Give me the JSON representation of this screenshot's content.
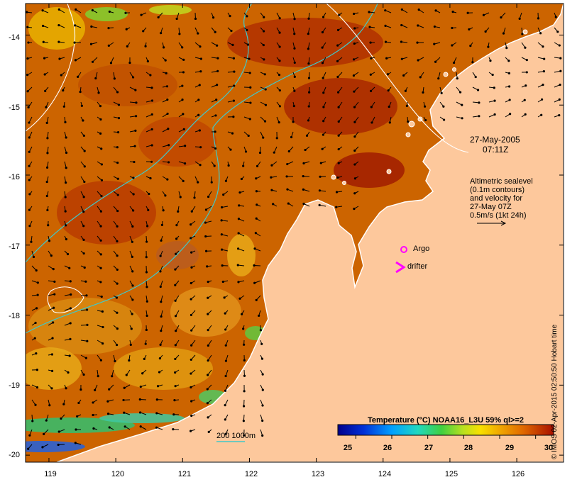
{
  "chart_data": {
    "type": "heatmap",
    "title": "Temperature (°C) NOAA16_L3U 59% ql>=2",
    "x_ticks": [
      "119",
      "120",
      "121",
      "122",
      "123",
      "124",
      "125",
      "126"
    ],
    "y_ticks": [
      "-14",
      "-15",
      "-16",
      "-17",
      "-18",
      "-19",
      "-20"
    ],
    "xlim": [
      118.65,
      126.7
    ],
    "ylim": [
      -20.1,
      -13.55
    ],
    "colorbar": {
      "ticks": [
        "25",
        "26",
        "27",
        "28",
        "29",
        "30"
      ],
      "range": [
        24.5,
        30.5
      ]
    },
    "date_label": "27-May-2005",
    "time_label": "07:11Z",
    "velocity_info": [
      "Altimetric sealevel",
      "(0.1m contours)",
      "and velocity for",
      "27-May 07Z",
      "0.5m/s (1kt 24h)"
    ],
    "markers": {
      "argo": {
        "label": "Argo",
        "lon": 124.3,
        "lat": -17.05,
        "color": "#ff00ff"
      },
      "drifter": {
        "label": "drifter",
        "lon": 124.25,
        "lat": -17.3,
        "color": "#ff00ff"
      }
    },
    "bathymetry_label": "200  1000m",
    "credit": "© IMOS 02-Apr-2015 02:50:50 Hobart time",
    "colors": {
      "land": "#fdc89c",
      "coast": "#ffffff",
      "contour": "#40c8c8",
      "arrow": "#000000"
    }
  }
}
